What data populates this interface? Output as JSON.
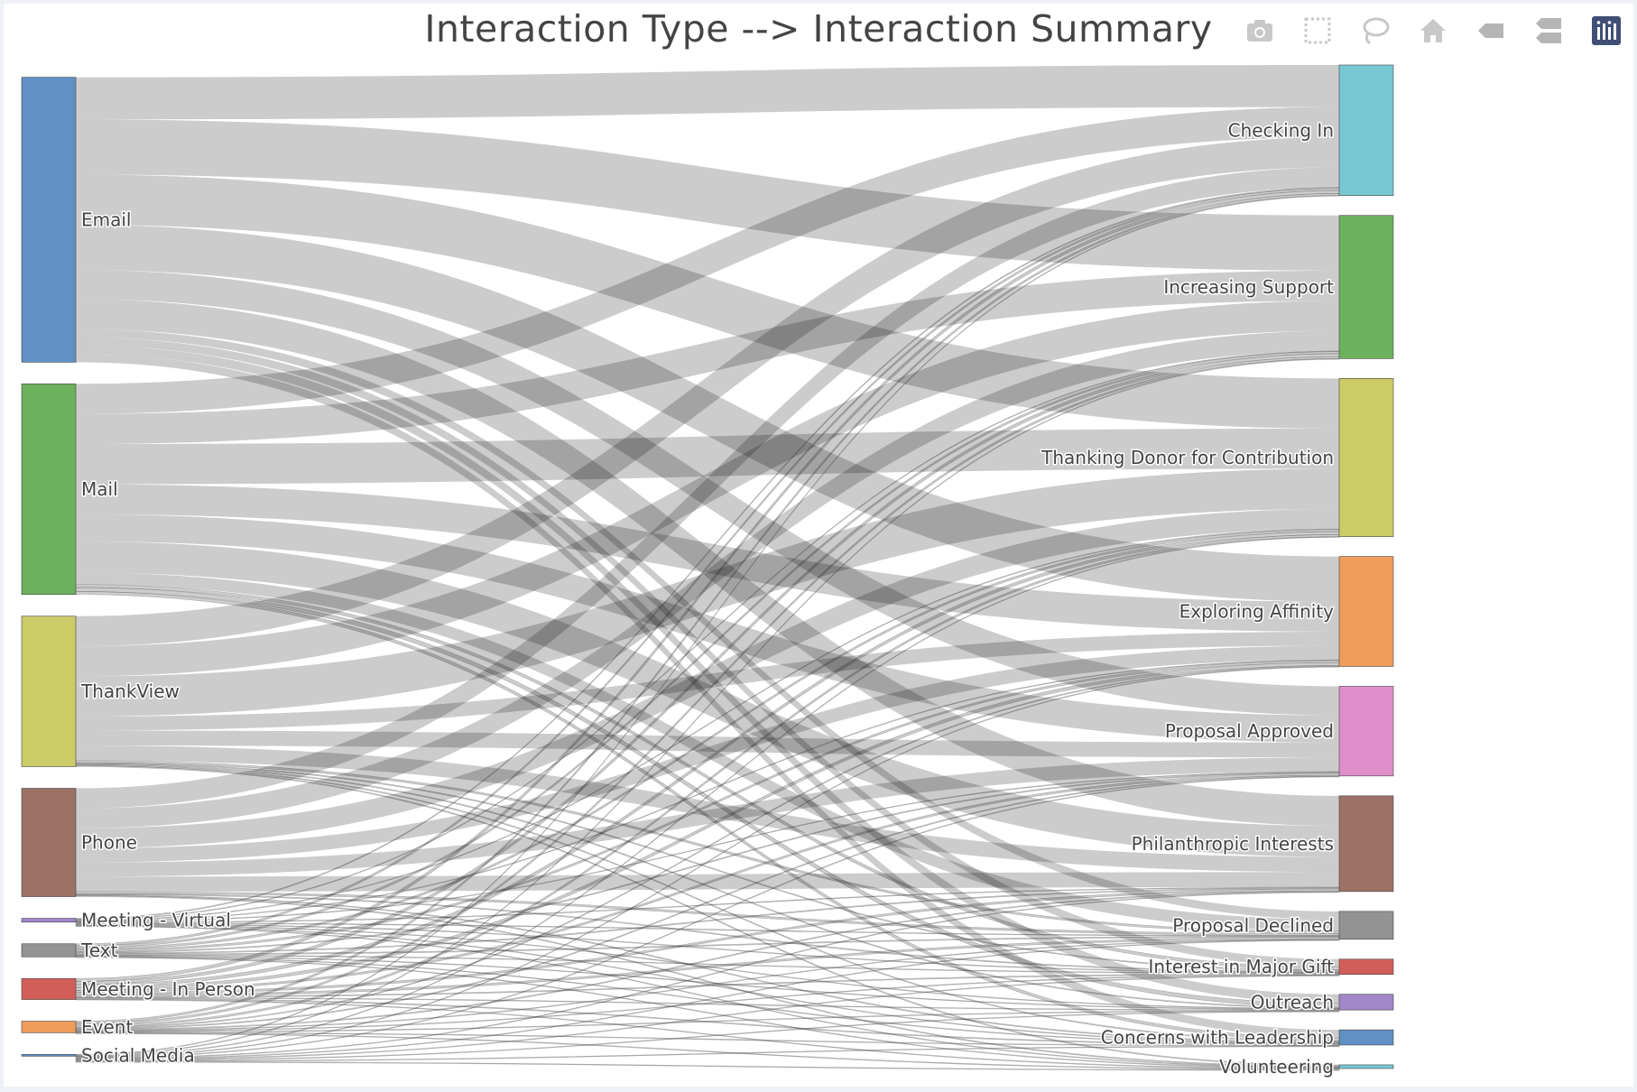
{
  "chart_data": {
    "type": "sankey",
    "title": "Interaction Type --> Interaction Summary",
    "link_color": "rgba(0,0,0,0.2)",
    "sources": [
      {
        "name": "Email",
        "color": "#6090c4"
      },
      {
        "name": "Mail",
        "color": "#6cb15e"
      },
      {
        "name": "ThankView",
        "color": "#cbcb67"
      },
      {
        "name": "Phone",
        "color": "#9c7266"
      },
      {
        "name": "Meeting - Virtual",
        "color": "#a186c8"
      },
      {
        "name": "Text",
        "color": "#939393"
      },
      {
        "name": "Meeting - In Person",
        "color": "#d25e5a"
      },
      {
        "name": "Event",
        "color": "#f09c5a"
      },
      {
        "name": "Social Media",
        "color": "#6090c4"
      }
    ],
    "targets": [
      {
        "name": "Checking In",
        "color": "#78c8d4"
      },
      {
        "name": "Increasing Support",
        "color": "#6cb15e"
      },
      {
        "name": "Thanking Donor for Contribution",
        "color": "#cbcb67"
      },
      {
        "name": "Exploring Affinity",
        "color": "#f09c5a"
      },
      {
        "name": "Proposal Approved",
        "color": "#de8fca"
      },
      {
        "name": "Philanthropic Interests",
        "color": "#9c7266"
      },
      {
        "name": "Proposal Declined",
        "color": "#939393"
      },
      {
        "name": "Interest in Major Gift",
        "color": "#d25e5a"
      },
      {
        "name": "Outreach",
        "color": "#a186c8"
      },
      {
        "name": "Concerns with Leadership",
        "color": "#6090c4"
      },
      {
        "name": "Volunteering",
        "color": "#78c8d4"
      }
    ],
    "flows": {
      "Email": [
        42,
        55,
        50,
        45,
        29,
        30,
        8,
        8,
        9,
        8,
        0
      ],
      "Mail": [
        30,
        30,
        40,
        30,
        27,
        31,
        12,
        3,
        4,
        3,
        0
      ],
      "ThankView": [
        30,
        30,
        40,
        14,
        15,
        15,
        2,
        1,
        1,
        1,
        1
      ],
      "Phone": [
        20,
        20,
        20,
        14,
        14,
        15,
        2,
        1,
        0,
        1,
        1
      ],
      "Meeting - Virtual": [
        1,
        0.5,
        0.5,
        0.5,
        0.3,
        0.3,
        0.2,
        0.2,
        0.1,
        0.1,
        0.1
      ],
      "Text": [
        2,
        2,
        2,
        2,
        1,
        1,
        1,
        0.5,
        0.5,
        0.5,
        0.5
      ],
      "Meeting - In Person": [
        3,
        3,
        3,
        3,
        2,
        2,
        2,
        1,
        0.5,
        1,
        0.5
      ],
      "Event": [
        2,
        2,
        2,
        1,
        1,
        1,
        0.5,
        0.5,
        0.5,
        0.5,
        0.5
      ],
      "Social Media": [
        0.2,
        0.2,
        0.2,
        0.1,
        0.1,
        0.1,
        0.1,
        0.05,
        0.05,
        0.05,
        0.05
      ]
    }
  },
  "toolbar": {
    "buttons": [
      {
        "name": "camera-icon",
        "title": "Download plot as a png"
      },
      {
        "name": "box-select-icon",
        "title": "Box Select"
      },
      {
        "name": "lasso-select-icon",
        "title": "Lasso Select"
      },
      {
        "name": "home-icon",
        "title": "Reset axes"
      },
      {
        "name": "spike-lines-icon",
        "title": "Show closest data on hover"
      },
      {
        "name": "compare-data-icon",
        "title": "Compare data on hover"
      },
      {
        "name": "plotly-logo-icon",
        "title": "Produced with Plotly"
      }
    ]
  }
}
